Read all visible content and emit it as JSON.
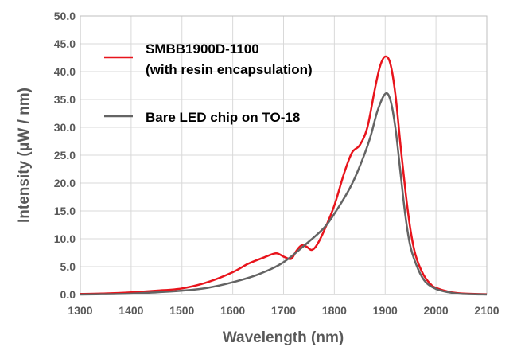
{
  "chart_data": {
    "type": "line",
    "xlabel": "Wavelength (nm)",
    "ylabel": "Intensity (μW / nm)",
    "xlim": [
      1300,
      2100
    ],
    "ylim": [
      0,
      50
    ],
    "x_ticks": [
      "1300",
      "1400",
      "1500",
      "1600",
      "1700",
      "1800",
      "1900",
      "2000",
      "2100"
    ],
    "y_ticks": [
      "0.0",
      "5.0",
      "10.0",
      "15.0",
      "20.0",
      "25.0",
      "30.0",
      "35.0",
      "40.0",
      "45.0",
      "50.0"
    ],
    "grid": true,
    "legend_position": "top-left",
    "series": [
      {
        "name_lines": [
          "SMBB1900D-1100",
          "(with resin encapsulation)"
        ],
        "color": "#e8141c",
        "points": [
          [
            1300,
            0.1
          ],
          [
            1350,
            0.2
          ],
          [
            1400,
            0.4
          ],
          [
            1450,
            0.7
          ],
          [
            1500,
            1.1
          ],
          [
            1550,
            2.2
          ],
          [
            1600,
            4.0
          ],
          [
            1630,
            5.5
          ],
          [
            1660,
            6.6
          ],
          [
            1685,
            7.4
          ],
          [
            1700,
            6.8
          ],
          [
            1715,
            6.4
          ],
          [
            1725,
            7.8
          ],
          [
            1735,
            8.8
          ],
          [
            1745,
            8.6
          ],
          [
            1755,
            8.0
          ],
          [
            1765,
            8.8
          ],
          [
            1780,
            11.5
          ],
          [
            1800,
            16.0
          ],
          [
            1820,
            22.0
          ],
          [
            1835,
            25.5
          ],
          [
            1850,
            26.8
          ],
          [
            1865,
            30.0
          ],
          [
            1880,
            37.0
          ],
          [
            1890,
            41.0
          ],
          [
            1900,
            42.7
          ],
          [
            1910,
            41.5
          ],
          [
            1920,
            36.0
          ],
          [
            1930,
            27.0
          ],
          [
            1940,
            18.5
          ],
          [
            1950,
            11.5
          ],
          [
            1960,
            7.0
          ],
          [
            1975,
            3.6
          ],
          [
            1990,
            1.8
          ],
          [
            2000,
            1.2
          ],
          [
            2025,
            0.5
          ],
          [
            2050,
            0.2
          ],
          [
            2100,
            0.05
          ]
        ]
      },
      {
        "name_lines": [
          "Bare  LED chip on TO-18"
        ],
        "color": "#646464",
        "points": [
          [
            1300,
            0.0
          ],
          [
            1350,
            0.05
          ],
          [
            1400,
            0.15
          ],
          [
            1450,
            0.4
          ],
          [
            1500,
            0.7
          ],
          [
            1550,
            1.2
          ],
          [
            1600,
            2.2
          ],
          [
            1650,
            3.6
          ],
          [
            1700,
            5.8
          ],
          [
            1750,
            9.5
          ],
          [
            1780,
            12.0
          ],
          [
            1800,
            14.5
          ],
          [
            1830,
            19.0
          ],
          [
            1850,
            23.0
          ],
          [
            1870,
            28.0
          ],
          [
            1885,
            33.0
          ],
          [
            1900,
            36.0
          ],
          [
            1910,
            35.0
          ],
          [
            1920,
            30.0
          ],
          [
            1930,
            22.0
          ],
          [
            1940,
            14.0
          ],
          [
            1950,
            8.5
          ],
          [
            1965,
            4.5
          ],
          [
            1980,
            2.2
          ],
          [
            2000,
            1.0
          ],
          [
            2025,
            0.4
          ],
          [
            2050,
            0.1
          ],
          [
            2100,
            0.0
          ]
        ]
      }
    ]
  }
}
